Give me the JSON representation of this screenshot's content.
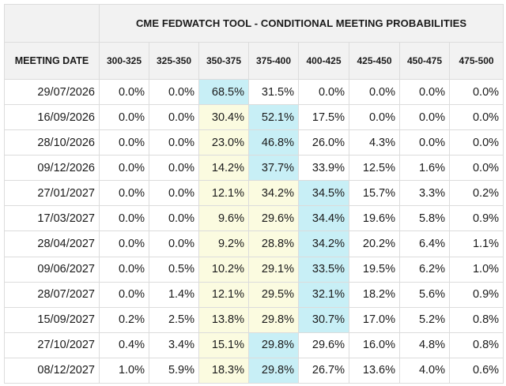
{
  "title": "CME FEDWATCH TOOL - CONDITIONAL MEETING PROBABILITIES",
  "date_header": "MEETING DATE",
  "columns": [
    "300-325",
    "325-350",
    "350-375",
    "375-400",
    "400-425",
    "425-450",
    "450-475",
    "475-500"
  ],
  "colors": {
    "yellow_highlight": "#fbfbe0",
    "blue_highlight": "#c8eff6",
    "header_bg": "#f2f2f2",
    "grid": "#dcdcdc"
  },
  "rows": [
    {
      "date": "29/07/2026",
      "values": [
        "0.0%",
        "0.0%",
        "68.5%",
        "31.5%",
        "0.0%",
        "0.0%",
        "0.0%",
        "0.0%"
      ],
      "max_col": 2,
      "yellow_cols": []
    },
    {
      "date": "16/09/2026",
      "values": [
        "0.0%",
        "0.0%",
        "30.4%",
        "52.1%",
        "17.5%",
        "0.0%",
        "0.0%",
        "0.0%"
      ],
      "max_col": 3,
      "yellow_cols": [
        2
      ]
    },
    {
      "date": "28/10/2026",
      "values": [
        "0.0%",
        "0.0%",
        "23.0%",
        "46.8%",
        "26.0%",
        "4.3%",
        "0.0%",
        "0.0%"
      ],
      "max_col": 3,
      "yellow_cols": [
        2
      ]
    },
    {
      "date": "09/12/2026",
      "values": [
        "0.0%",
        "0.0%",
        "14.2%",
        "37.7%",
        "33.9%",
        "12.5%",
        "1.6%",
        "0.0%"
      ],
      "max_col": 3,
      "yellow_cols": [
        2
      ]
    },
    {
      "date": "27/01/2027",
      "values": [
        "0.0%",
        "0.0%",
        "12.1%",
        "34.2%",
        "34.5%",
        "15.7%",
        "3.3%",
        "0.2%"
      ],
      "max_col": 4,
      "yellow_cols": [
        2,
        3
      ]
    },
    {
      "date": "17/03/2027",
      "values": [
        "0.0%",
        "0.0%",
        "9.6%",
        "29.6%",
        "34.4%",
        "19.6%",
        "5.8%",
        "0.9%"
      ],
      "max_col": 4,
      "yellow_cols": [
        2,
        3
      ]
    },
    {
      "date": "28/04/2027",
      "values": [
        "0.0%",
        "0.0%",
        "9.2%",
        "28.8%",
        "34.2%",
        "20.2%",
        "6.4%",
        "1.1%"
      ],
      "max_col": 4,
      "yellow_cols": [
        2,
        3
      ]
    },
    {
      "date": "09/06/2027",
      "values": [
        "0.0%",
        "0.5%",
        "10.2%",
        "29.1%",
        "33.5%",
        "19.5%",
        "6.2%",
        "1.0%"
      ],
      "max_col": 4,
      "yellow_cols": [
        2,
        3
      ]
    },
    {
      "date": "28/07/2027",
      "values": [
        "0.0%",
        "1.4%",
        "12.1%",
        "29.5%",
        "32.1%",
        "18.2%",
        "5.6%",
        "0.9%"
      ],
      "max_col": 4,
      "yellow_cols": [
        2,
        3
      ]
    },
    {
      "date": "15/09/2027",
      "values": [
        "0.2%",
        "2.5%",
        "13.8%",
        "29.8%",
        "30.7%",
        "17.0%",
        "5.2%",
        "0.8%"
      ],
      "max_col": 4,
      "yellow_cols": [
        2,
        3
      ]
    },
    {
      "date": "27/10/2027",
      "values": [
        "0.4%",
        "3.4%",
        "15.1%",
        "29.8%",
        "29.6%",
        "16.0%",
        "4.8%",
        "0.8%"
      ],
      "max_col": 3,
      "yellow_cols": [
        2
      ]
    },
    {
      "date": "08/12/2027",
      "values": [
        "1.0%",
        "5.9%",
        "18.3%",
        "29.8%",
        "26.7%",
        "13.6%",
        "4.0%",
        "0.6%"
      ],
      "max_col": 3,
      "yellow_cols": [
        2
      ]
    }
  ]
}
